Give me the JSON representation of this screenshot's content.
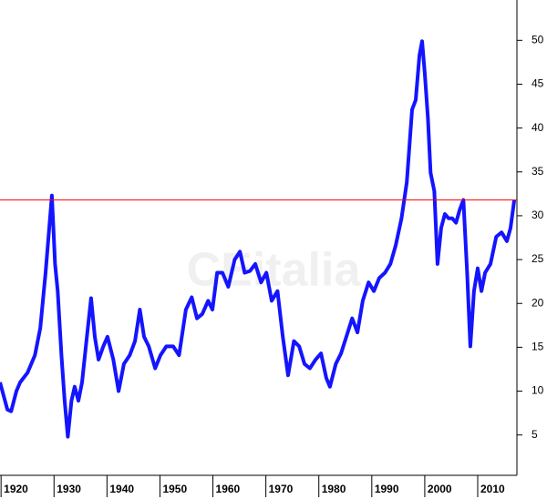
{
  "chart_data": {
    "type": "line",
    "watermark": "CEitalia",
    "x": [
      1919.8,
      1921.2,
      1921.9,
      1922.9,
      1923.6,
      1925.0,
      1926.4,
      1927.4,
      1928.4,
      1929.1,
      1929.6,
      1930.2,
      1930.7,
      1931.4,
      1932.0,
      1932.6,
      1933.3,
      1933.9,
      1934.6,
      1935.3,
      1936.2,
      1937.0,
      1937.7,
      1938.4,
      1939.3,
      1940.1,
      1941.2,
      1942.2,
      1943.2,
      1944.3,
      1945.3,
      1946.2,
      1947.0,
      1947.9,
      1949.1,
      1950.1,
      1951.2,
      1952.5,
      1953.6,
      1954.9,
      1956.0,
      1957.0,
      1958.0,
      1959.1,
      1959.9,
      1960.8,
      1961.8,
      1962.9,
      1964.1,
      1965.1,
      1966.0,
      1967.0,
      1968.0,
      1969.1,
      1970.1,
      1971.1,
      1972.2,
      1973.2,
      1974.2,
      1975.3,
      1976.3,
      1977.3,
      1978.3,
      1979.4,
      1980.4,
      1981.4,
      1982.1,
      1983.2,
      1984.2,
      1985.2,
      1986.3,
      1987.3,
      1988.3,
      1989.4,
      1990.4,
      1991.4,
      1992.5,
      1993.5,
      1994.5,
      1995.6,
      1996.6,
      1997.6,
      1998.3,
      1999.0,
      1999.5,
      2000.0,
      2000.6,
      2001.1,
      2001.8,
      2002.4,
      2003.1,
      2003.8,
      2004.5,
      2005.2,
      2005.9,
      2006.6,
      2007.3,
      2008.0,
      2008.6,
      2009.3,
      2010.0,
      2010.7,
      2011.4,
      2012.4,
      2013.5,
      2014.5,
      2015.5,
      2016.2,
      2016.9
    ],
    "series": [
      {
        "color": "#1414ff",
        "values": [
          11.0,
          7.9,
          7.7,
          10.0,
          11.0,
          12.1,
          14.1,
          17.2,
          23.5,
          28.6,
          32.3,
          24.5,
          21.4,
          14.1,
          8.9,
          4.8,
          8.9,
          10.5,
          8.9,
          11.0,
          16.2,
          20.6,
          16.2,
          13.6,
          15.1,
          16.2,
          13.6,
          10.0,
          13.1,
          14.1,
          15.7,
          19.3,
          16.2,
          15.1,
          12.6,
          14.1,
          15.1,
          15.1,
          14.1,
          19.3,
          20.7,
          18.3,
          18.8,
          20.3,
          19.3,
          23.5,
          23.5,
          21.9,
          25.0,
          25.9,
          23.5,
          23.7,
          24.5,
          22.4,
          23.5,
          20.3,
          21.4,
          16.2,
          11.8,
          15.7,
          15.1,
          13.1,
          12.6,
          13.6,
          14.3,
          11.5,
          10.5,
          13.1,
          14.3,
          16.2,
          18.3,
          16.7,
          20.3,
          22.4,
          21.4,
          22.9,
          23.5,
          24.5,
          26.6,
          29.7,
          33.8,
          42.1,
          43.2,
          48.3,
          49.9,
          46.3,
          41.1,
          34.9,
          32.8,
          24.5,
          28.6,
          30.2,
          29.7,
          29.7,
          29.2,
          30.7,
          31.8,
          23.5,
          15.1,
          21.4,
          24.0,
          21.4,
          23.5,
          24.5,
          27.6,
          28.1,
          27.1,
          28.6,
          31.8
        ]
      }
    ],
    "reference_line": {
      "value": 31.8,
      "color": "#ff0000"
    },
    "xlim": [
      1919.8,
      2017.4
    ],
    "xticks": [
      1920,
      1930,
      1940,
      1950,
      1960,
      1970,
      1980,
      1990,
      2000,
      2010
    ],
    "ylim": [
      0.4,
      54.6
    ],
    "yticks": [
      5,
      10,
      15,
      20,
      25,
      30,
      35,
      40,
      45,
      50
    ]
  }
}
